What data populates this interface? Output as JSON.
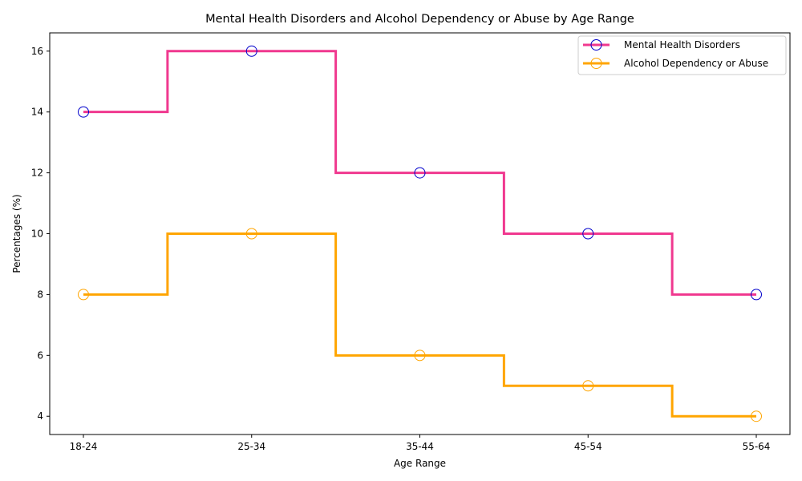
{
  "chart_data": {
    "type": "line",
    "step": "mid",
    "title": "Mental Health Disorders and Alcohol Dependency or Abuse by Age Range",
    "xlabel": "Age Range",
    "ylabel": "Percentages (%)",
    "categories": [
      "18-24",
      "25-34",
      "35-44",
      "45-54",
      "55-64"
    ],
    "ylim": [
      3.4,
      16.6
    ],
    "yticks": [
      4,
      6,
      8,
      10,
      12,
      14,
      16
    ],
    "grid": false,
    "legend_position": "top-right",
    "series": [
      {
        "name": "Mental Health Disorders",
        "values": [
          14,
          16,
          12,
          10,
          8
        ],
        "line_color": "#f0388f",
        "marker_color": "#0000cc"
      },
      {
        "name": "Alcohol Dependency or Abuse",
        "values": [
          8,
          10,
          6,
          5,
          4
        ],
        "line_color": "#ffa500",
        "marker_color": "#ffa500"
      }
    ]
  }
}
